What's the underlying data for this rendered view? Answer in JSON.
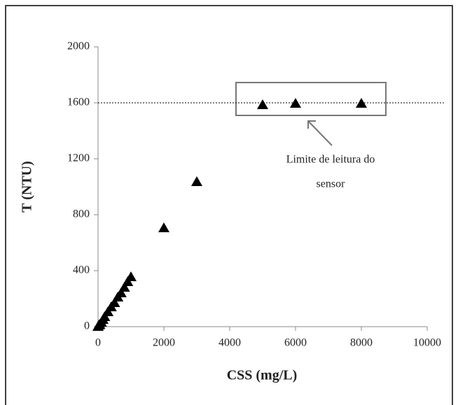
{
  "chart_data": {
    "type": "scatter",
    "x_label": "CSS (mg/L)",
    "y_label": "T (NTU)",
    "x": [
      0,
      25,
      50,
      100,
      150,
      200,
      300,
      400,
      500,
      600,
      700,
      800,
      900,
      1000,
      2000,
      3000,
      5000,
      6000,
      8000
    ],
    "series": [
      {
        "color": "#000000",
        "values": [
          0,
          10,
          15,
          30,
          50,
          70,
          105,
          140,
          170,
          210,
          240,
          280,
          320,
          355,
          705,
          1035,
          1585,
          1595,
          1595
        ]
      }
    ],
    "xlim": [
      0,
      10000
    ],
    "xticks": [
      0,
      2000,
      4000,
      6000,
      8000,
      10000
    ],
    "ylim": [
      0,
      2000
    ],
    "yticks": [
      0,
      400,
      800,
      1200,
      1600,
      2000
    ],
    "hline": 1600,
    "annotation": [
      "Limite de leitura do",
      "sensor"
    ]
  }
}
